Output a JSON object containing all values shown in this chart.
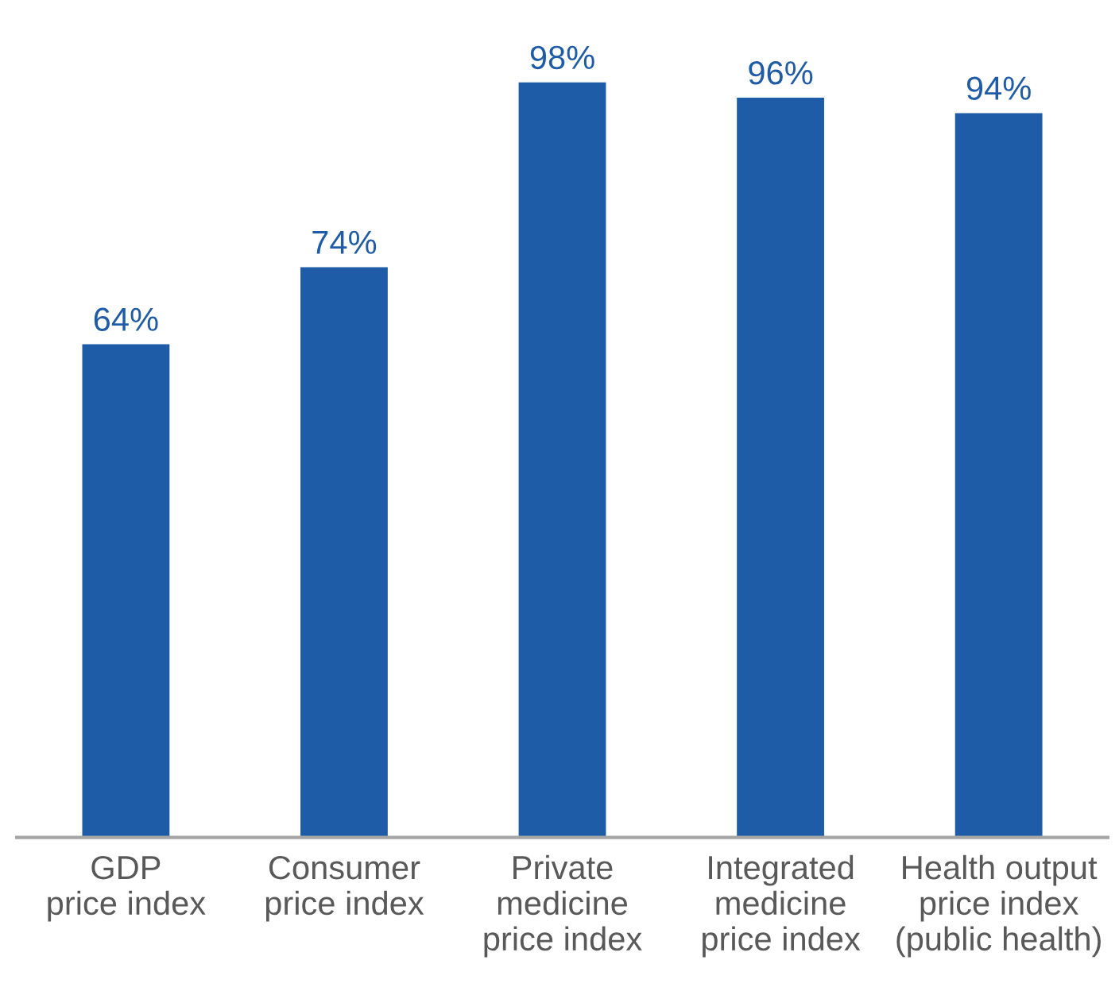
{
  "chart_data": {
    "type": "bar",
    "categories": [
      "GDP\nprice index",
      "Consumer\nprice index",
      "Private\nmedicine\nprice index",
      "Integrated\nmedicine\nprice index",
      "Health output\nprice index\n(public health)"
    ],
    "values": [
      64,
      74,
      98,
      96,
      94
    ],
    "value_labels": [
      "64%",
      "74%",
      "98%",
      "96%",
      "94%"
    ],
    "color": "#1f5ca8",
    "tick_labels": "x"
  }
}
